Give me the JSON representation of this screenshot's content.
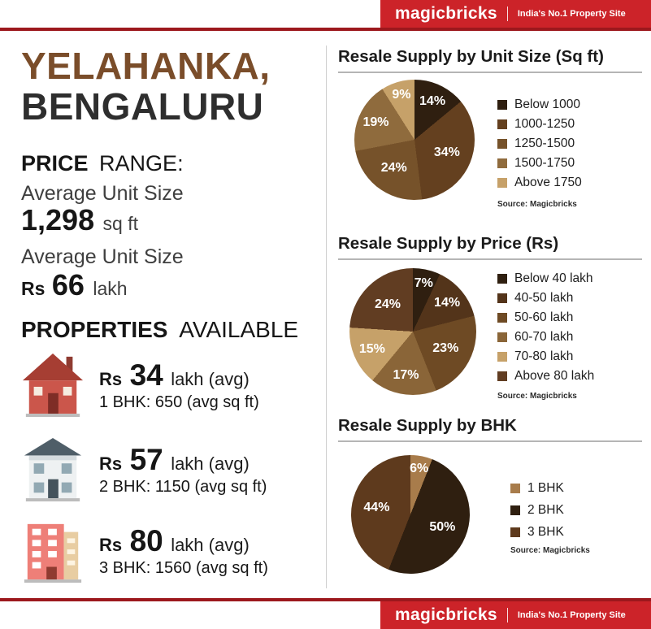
{
  "brand": {
    "logo": "magicbricks",
    "tagline": "India's No.1 Property Site",
    "bar_color": "#cc2329",
    "line_color": "#9c181d"
  },
  "location": {
    "line1": "YELAHANKA,",
    "line2": "BENGALURU"
  },
  "price_range": {
    "heading_bold": "PRICE",
    "heading_rest": "RANGE:",
    "avg_unit_size_label": "Average Unit Size",
    "avg_unit_size_value": "1,298",
    "avg_unit_size_unit": "sq ft",
    "avg_unit_price_label": "Average Unit Size",
    "avg_unit_price_currency": "Rs",
    "avg_unit_price_value": "66",
    "avg_unit_price_unit": "lakh"
  },
  "properties": {
    "heading_bold": "PROPERTIES",
    "heading_rest": "AVAILABLE",
    "rows": [
      {
        "currency": "Rs",
        "price": "34",
        "suffix": "lakh (avg)",
        "detail": "1 BHK: 650 (avg sq ft)"
      },
      {
        "currency": "Rs",
        "price": "57",
        "suffix": "lakh (avg)",
        "detail": "2 BHK: 1150 (avg sq ft)"
      },
      {
        "currency": "Rs",
        "price": "80",
        "suffix": "lakh (avg)",
        "detail": "3 BHK: 1560 (avg sq ft)"
      }
    ]
  },
  "chart_data": [
    {
      "type": "pie",
      "title": "Resale Supply by Unit Size (Sq ft)",
      "labels": [
        "Below 1000",
        "1000-1250",
        "1250-1500",
        "1500-1750",
        "Above 1750"
      ],
      "values": [
        14,
        34,
        24,
        19,
        9
      ],
      "value_labels": [
        "14%",
        "34%",
        "24%",
        "19%",
        "9%"
      ],
      "colors": [
        "#2f1f10",
        "#64401f",
        "#76522a",
        "#8f6b3d",
        "#c6a169"
      ],
      "legend_position": "right",
      "source": "Source: Magicbricks"
    },
    {
      "type": "pie",
      "title": "Resale Supply by Price (Rs)",
      "labels": [
        "Below 40 lakh",
        "40-50 lakh",
        "50-60 lakh",
        "60-70 lakh",
        "70-80 lakh",
        "Above 80 lakh"
      ],
      "values": [
        7,
        14,
        23,
        17,
        15,
        24
      ],
      "value_labels": [
        "7%",
        "14%",
        "23%",
        "17%",
        "15%",
        "24%"
      ],
      "colors": [
        "#2f1f10",
        "#53341a",
        "#6e4a24",
        "#8a6538",
        "#c6a169",
        "#613d22"
      ],
      "legend_position": "right",
      "source": "Source: Magicbricks"
    },
    {
      "type": "pie",
      "title": "Resale Supply by BHK",
      "labels": [
        "1 BHK",
        "2 BHK",
        "3 BHK"
      ],
      "values": [
        6,
        50,
        44
      ],
      "value_labels": [
        "6%",
        "50%",
        "44%"
      ],
      "colors": [
        "#a87c4b",
        "#2f1f10",
        "#5e3a1d"
      ],
      "legend_position": "right",
      "source": "Source: Magicbricks"
    }
  ]
}
